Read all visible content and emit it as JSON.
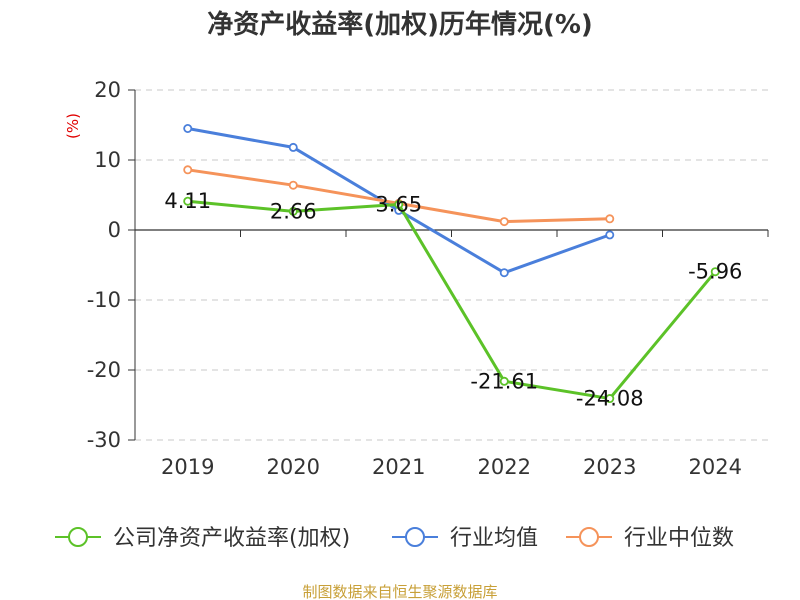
{
  "chart_data": {
    "type": "line",
    "title": "净资产收益率(加权)历年情况(%)",
    "ylabel": "(%)",
    "xlabel": "",
    "categories": [
      "2019",
      "2020",
      "2021",
      "2022",
      "2023",
      "2024"
    ],
    "ylim": [
      -30,
      20
    ],
    "yticks": [
      20,
      10,
      0,
      -10,
      -20,
      -30
    ],
    "grid": true,
    "legend_position": "bottom",
    "series": [
      {
        "name": "公司净资产收益率(加权)",
        "color": "#5cc228",
        "values": [
          4.11,
          2.66,
          3.65,
          -21.61,
          -24.08,
          -5.96
        ],
        "labels": [
          "4.11",
          "2.66",
          "3.65",
          "-21.61",
          "-24.08",
          "-5.96"
        ]
      },
      {
        "name": "行业均值",
        "color": "#4a7fdb",
        "values": [
          14.5,
          11.8,
          2.8,
          -6.1,
          -0.7,
          null
        ]
      },
      {
        "name": "行业中位数",
        "color": "#f5935a",
        "values": [
          8.6,
          6.4,
          3.8,
          1.2,
          1.6,
          null
        ]
      }
    ],
    "source": "制图数据来自恒生聚源数据库"
  }
}
